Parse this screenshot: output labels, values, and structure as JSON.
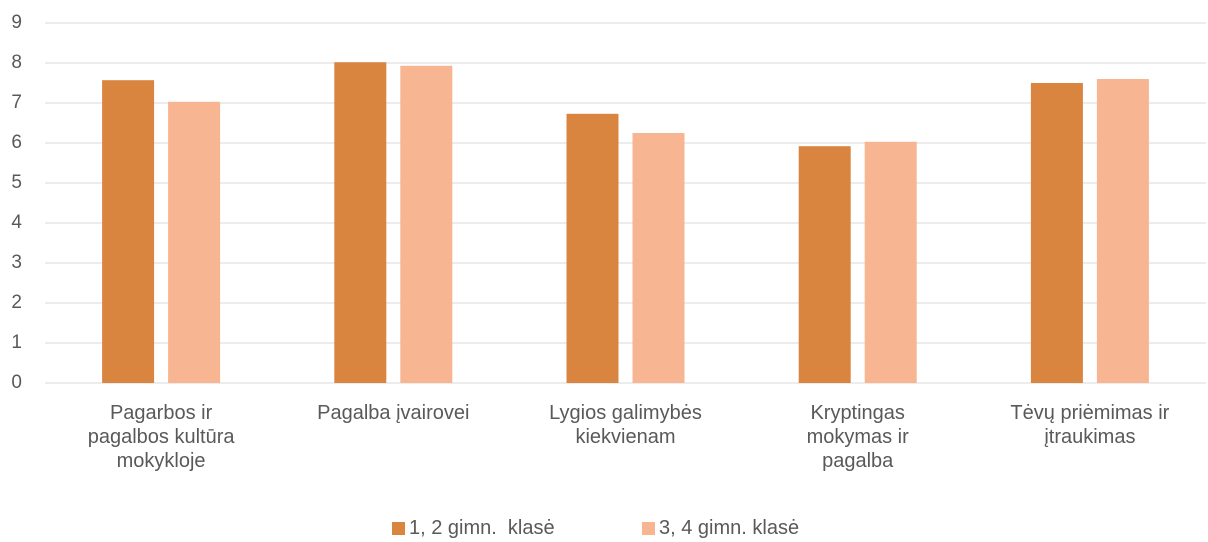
{
  "chart_data": {
    "type": "bar",
    "categories": [
      "Pagarbos ir\npagalbos kultūra\nmokykloje",
      "Pagalba įvairovei",
      "Lygios galimybės\nkiekvienam",
      "Kryptingas\nmokymas ir\npagalba",
      "Tėvų priėmimas ir\nįtraukimas"
    ],
    "series": [
      {
        "name": "1, 2 gimn.  klasė",
        "color": "#d9843f",
        "values": [
          7.57,
          8.02,
          6.73,
          5.92,
          7.5
        ]
      },
      {
        "name": "3, 4 gimn. klasė",
        "color": "#f8b591",
        "values": [
          7.03,
          7.93,
          6.25,
          6.03,
          7.6
        ]
      }
    ],
    "ylim": [
      0,
      9
    ],
    "yticks": [
      0,
      1,
      2,
      3,
      4,
      5,
      6,
      7,
      8,
      9
    ],
    "grid": true,
    "legend": "bottom"
  }
}
